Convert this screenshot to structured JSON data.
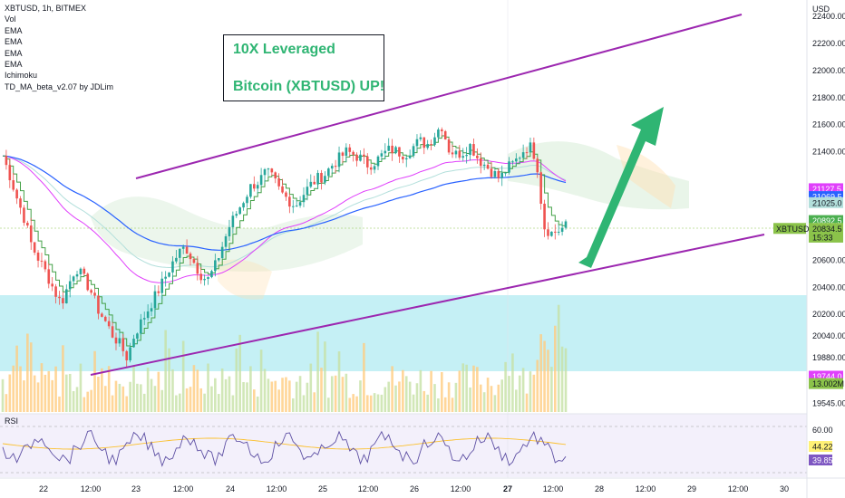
{
  "legend": {
    "symbol": "XBTUSD, 1h, BITMEX",
    "indicators": [
      "Vol",
      "EMA",
      "EMA",
      "EMA",
      "EMA",
      "Ichimoku",
      "TD_MA_beta_v2.07 by JDLim"
    ]
  },
  "annotation": {
    "line1": "10X Leveraged",
    "line2": "Bitcoin (XBTUSD) UP!"
  },
  "currency": "USD",
  "price_axis": {
    "ticks": [
      "22400.00",
      "22200.00",
      "22000.00",
      "21800.00",
      "21600.00",
      "21400.00",
      "20600.00",
      "20400.00",
      "20200.00",
      "20040.00",
      "19880.00",
      "19545.00"
    ],
    "tick_values": [
      22400,
      22200,
      22000,
      21800,
      21600,
      21400,
      20600,
      20400,
      20200,
      20040,
      19880,
      19545
    ],
    "badges": [
      {
        "text": "21127.5",
        "value": 21127.5,
        "color": "#e040fb"
      },
      {
        "text": "21069.5",
        "value": 21069.5,
        "color": "#2962ff"
      },
      {
        "text": "21025.0",
        "value": 21025.0,
        "color": "#b2dfdb"
      },
      {
        "text": "20892.5",
        "value": 20892.5,
        "color": "#4caf50"
      },
      {
        "text": "20834.5",
        "value": 20834.5,
        "color": "#8bc34a"
      },
      {
        "text": "15:33",
        "value": 20770,
        "color": "#8bc34a"
      },
      {
        "text": "19744.0",
        "value": 19744.0,
        "color": "#e040fb"
      },
      {
        "text": "13.002M",
        "value": 19690,
        "color": "#8bc34a"
      }
    ],
    "symbol_tag": "XBTUSD"
  },
  "rsi": {
    "label": "RSI",
    "ticks": [
      "60.00"
    ],
    "badges": [
      {
        "text": "44.22",
        "color": "#fff176"
      },
      {
        "text": "39.85",
        "color": "#7e57c2"
      }
    ]
  },
  "time_axis": {
    "labels": [
      "22",
      "12:00",
      "23",
      "12:00",
      "24",
      "12:00",
      "25",
      "12:00",
      "26",
      "12:00",
      "27",
      "12:00",
      "28",
      "12:00",
      "29",
      "12:00",
      "30"
    ]
  },
  "colors": {
    "up": "#26a69a",
    "up_bright": "#8bc34a",
    "down": "#ef5350",
    "channel": "#9c27b0",
    "arrow": "#2fb573",
    "ema_blue": "#2962ff",
    "ema_pink": "#e040fb",
    "zone": "#b2ebf2"
  },
  "chart_data": {
    "type": "candlestick",
    "title": "XBTUSD, 1h, BITMEX",
    "ylim": [
      19480,
      22520
    ],
    "close_path": [
      21370,
      21220,
      21050,
      20900,
      20700,
      20600,
      20500,
      20380,
      20280,
      20420,
      20550,
      20470,
      20380,
      20240,
      20150,
      20050,
      19980,
      19880,
      20050,
      20150,
      20250,
      20350,
      20450,
      20560,
      20650,
      20700,
      20600,
      20500,
      20450,
      20550,
      20700,
      20850,
      20950,
      21050,
      21150,
      21180,
      21250,
      21200,
      21100,
      21050,
      21000,
      21080,
      21150,
      21200,
      21230,
      21300,
      21350,
      21400,
      21380,
      21350,
      21300,
      21330,
      21380,
      21420,
      21400,
      21380,
      21430,
      21480,
      21450,
      21520,
      21600,
      21420,
      21380,
      21400,
      21450,
      21350,
      21300,
      21250,
      21200,
      21280,
      21320,
      21400,
      21450,
      21350,
      20850,
      20800,
      20820,
      20850
    ]
  }
}
